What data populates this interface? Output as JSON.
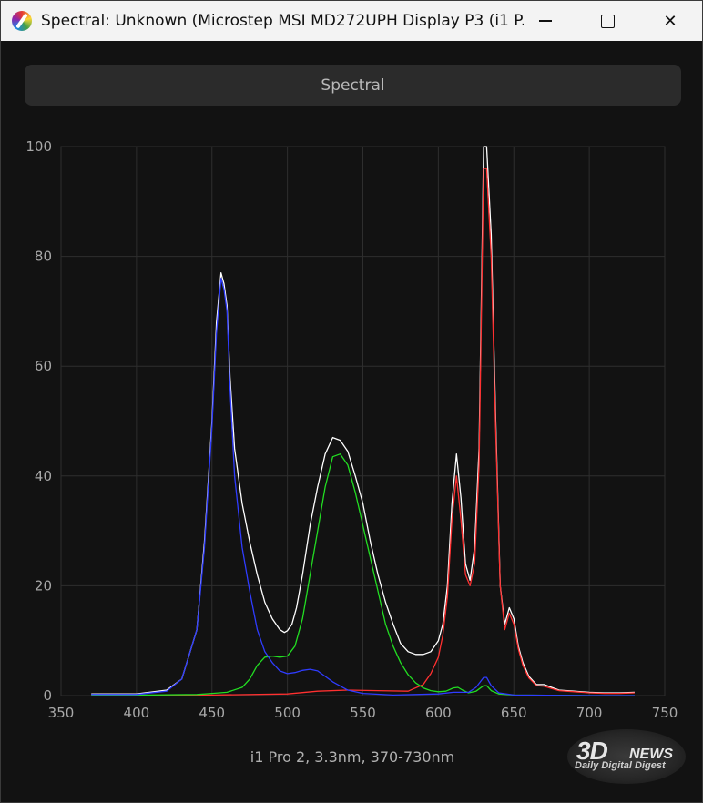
{
  "window": {
    "title": "Spectral: Unknown (Microstep MSI MD272UPH Display P3 (i1 P...",
    "icon": "spectrum-app-icon",
    "min_glyph": "",
    "max_glyph": "",
    "close_glyph": "✕"
  },
  "tab": {
    "label": "Spectral"
  },
  "footer": {
    "label": "i1 Pro 2, 3.3nm, 370-730nm"
  },
  "watermark": {
    "logo": "3D",
    "news": "NEWS",
    "sub": "Daily Digital Digest"
  },
  "colors": {
    "background": "#121212",
    "grid": "#2e2e2e",
    "tick_text": "#a8a8a8",
    "white_series": "#ffffff",
    "red_series": "#ff3030",
    "green_series": "#22dd22",
    "blue_series": "#2f3cff"
  },
  "chart_data": {
    "type": "line",
    "title": "",
    "xlabel": "",
    "ylabel": "",
    "xlim": [
      350,
      750
    ],
    "ylim": [
      0,
      100
    ],
    "xticks": [
      350,
      400,
      450,
      500,
      550,
      600,
      650,
      700,
      750
    ],
    "yticks": [
      0,
      20,
      40,
      60,
      80,
      100
    ],
    "grid": true,
    "series": [
      {
        "color": "#ffffff",
        "x": [
          370,
          400,
          420,
          430,
          440,
          445,
          450,
          453,
          456,
          458,
          460,
          462,
          465,
          470,
          475,
          480,
          485,
          490,
          495,
          498,
          500,
          503,
          506,
          510,
          515,
          520,
          525,
          530,
          535,
          540,
          545,
          550,
          555,
          560,
          565,
          570,
          575,
          580,
          585,
          590,
          595,
          600,
          603,
          606,
          609,
          612,
          615,
          618,
          621,
          624,
          627,
          630,
          632,
          635,
          638,
          641,
          644,
          647,
          650,
          653,
          656,
          660,
          665,
          670,
          675,
          680,
          690,
          700,
          710,
          720,
          730
        ],
        "y": [
          0.3,
          0.3,
          1,
          3,
          12,
          28,
          50,
          68,
          77,
          75,
          71,
          58,
          45,
          35,
          28,
          22,
          17,
          14,
          12,
          11.5,
          11.8,
          13,
          16,
          22,
          31,
          38,
          44,
          47,
          46.5,
          44.5,
          40,
          35,
          28,
          22,
          17,
          13,
          9.5,
          8,
          7.5,
          7.5,
          8,
          10,
          13,
          20,
          35,
          44,
          36,
          24,
          21,
          27,
          45,
          100,
          100,
          84,
          50,
          20,
          13,
          16,
          14,
          9,
          6,
          3.5,
          2,
          2,
          1.5,
          1,
          0.8,
          0.6,
          0.5,
          0.5,
          0.6
        ]
      },
      {
        "color": "#ff3030",
        "x": [
          370,
          450,
          500,
          520,
          540,
          560,
          580,
          590,
          595,
          600,
          603,
          606,
          609,
          612,
          615,
          618,
          621,
          624,
          627,
          630,
          632,
          635,
          638,
          641,
          644,
          647,
          650,
          653,
          656,
          660,
          665,
          670,
          675,
          680,
          690,
          700,
          710,
          720,
          730
        ],
        "y": [
          0,
          0.1,
          0.3,
          0.8,
          1,
          0.9,
          0.8,
          2,
          4,
          7,
          11,
          18,
          32,
          40,
          32,
          22,
          20,
          24,
          42,
          96,
          96,
          80,
          48,
          20,
          12,
          15,
          13,
          8.5,
          5.5,
          3.2,
          1.8,
          1.7,
          1.3,
          0.9,
          0.7,
          0.5,
          0.4,
          0.4,
          0.5
        ]
      },
      {
        "color": "#22dd22",
        "x": [
          370,
          440,
          450,
          460,
          470,
          475,
          480,
          485,
          490,
          495,
          500,
          505,
          510,
          515,
          520,
          525,
          530,
          535,
          540,
          545,
          550,
          555,
          560,
          565,
          570,
          575,
          580,
          585,
          590,
          595,
          600,
          605,
          610,
          613,
          616,
          620,
          625,
          630,
          632,
          635,
          640,
          650,
          700,
          730
        ],
        "y": [
          0,
          0.2,
          0.4,
          0.6,
          1.5,
          3,
          5.5,
          7,
          7.2,
          7,
          7.2,
          9,
          14,
          22,
          30,
          38,
          43.5,
          44,
          42,
          37,
          31,
          25,
          19,
          13,
          9,
          6,
          3.8,
          2.3,
          1.4,
          0.9,
          0.7,
          0.8,
          1.4,
          1.5,
          1,
          0.5,
          0.8,
          1.8,
          1.8,
          0.9,
          0.3,
          0.1,
          0,
          0
        ]
      },
      {
        "color": "#2f3cff",
        "x": [
          370,
          400,
          420,
          430,
          440,
          445,
          450,
          453,
          456,
          458,
          460,
          462,
          465,
          470,
          475,
          480,
          485,
          490,
          495,
          500,
          505,
          510,
          515,
          520,
          525,
          530,
          540,
          550,
          570,
          600,
          610,
          620,
          625,
          630,
          632,
          635,
          640,
          650,
          700,
          730
        ],
        "y": [
          0.2,
          0.2,
          0.8,
          3,
          12,
          27,
          49,
          66,
          76,
          74,
          70,
          56,
          40,
          27,
          19,
          12,
          8,
          6,
          4.5,
          4,
          4.2,
          4.6,
          4.8,
          4.5,
          3.5,
          2.5,
          1,
          0.4,
          0.1,
          0.3,
          0.6,
          0.6,
          1.5,
          3.3,
          3.3,
          1.8,
          0.5,
          0.1,
          0,
          0
        ]
      }
    ]
  }
}
